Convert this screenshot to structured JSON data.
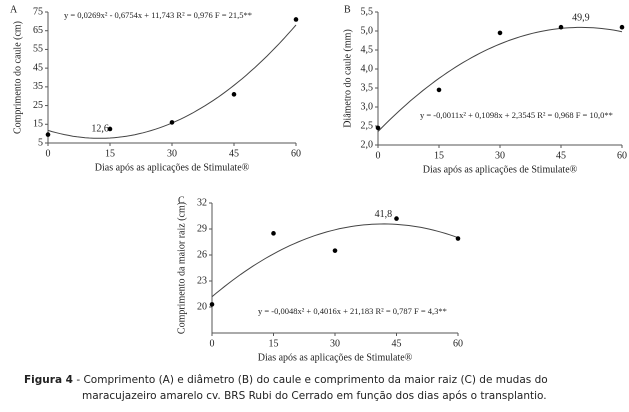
{
  "chart_data": [
    {
      "type": "scatter",
      "panel": "A",
      "equation": "y = 0,0269x² - 0,6754x + 11,743  R² = 0,976  F = 21,5**",
      "fit": [
        0.0269,
        -0.6754,
        11.743
      ],
      "annotation": {
        "value": 12.6,
        "label": "12,6"
      },
      "xlabel": "Dias após as aplicações de Stimulate®",
      "ylabel": "Comprimento do caule (cm)",
      "x": [
        0,
        15,
        30,
        45,
        60
      ],
      "values": [
        9.5,
        12.5,
        16,
        31,
        71
      ],
      "color": "#000000",
      "xlim": [
        0,
        60
      ],
      "xticks": [
        0,
        15,
        30,
        45,
        60
      ],
      "ylim": [
        5,
        75
      ],
      "yticks": [
        5,
        15,
        25,
        35,
        45,
        55,
        65,
        75
      ]
    },
    {
      "type": "scatter",
      "panel": "B",
      "equation": "y = -0,0011x² + 0,1098x + 2,3545  R² = 0,968  F = 10,0**",
      "fit": [
        -0.0011,
        0.1098,
        2.3545
      ],
      "annotation": {
        "value": 49.9,
        "label": "49,9"
      },
      "xlabel": "Dias após as aplicações de Stimulate®",
      "ylabel": "Diâmetro do caule (mm)",
      "x": [
        0,
        15,
        30,
        45,
        60
      ],
      "values": [
        2.45,
        3.45,
        4.95,
        5.1,
        5.1
      ],
      "color": "#000000",
      "xlim": [
        0,
        60
      ],
      "xticks": [
        0,
        15,
        30,
        45,
        60
      ],
      "ylim": [
        2,
        5.5
      ],
      "yticks": [
        {
          "value": 2,
          "label": "2,0"
        },
        {
          "value": 2.5,
          "label": "2,5"
        },
        {
          "value": 3,
          "label": "3,0"
        },
        {
          "value": 3.5,
          "label": "3,5"
        },
        {
          "value": 4,
          "label": "4,0"
        },
        {
          "value": 4.5,
          "label": "4,5"
        },
        {
          "value": 5,
          "label": "5,0"
        },
        {
          "value": 5.5,
          "label": "5,5"
        }
      ]
    },
    {
      "type": "scatter",
      "panel": "C",
      "equation": "y = -0,0048x² + 0,4016x + 21,183  R² = 0,787  F = 4,3**",
      "fit": [
        -0.0048,
        0.4016,
        21.183
      ],
      "annotation": {
        "value": 41.8,
        "label": "41,8"
      },
      "xlabel": "Dias após as aplicações de Stimulate®",
      "ylabel": "Comprimento da maior raiz (cm)",
      "x": [
        0,
        15,
        30,
        45,
        60
      ],
      "values": [
        20.3,
        28.5,
        26.5,
        30.2,
        27.9
      ],
      "color": "#000000",
      "xlim": [
        0,
        60
      ],
      "xticks": [
        0,
        15,
        30,
        45,
        60
      ],
      "ylim": [
        17,
        32
      ],
      "yticks": [
        20,
        23,
        26,
        29,
        32
      ]
    }
  ],
  "caption": {
    "label": "Figura 4",
    "text": "- Comprimento (A) e diâmetro (B) do caule e comprimento da maior raiz (C) de mudas do maracujazeiro amarelo cv. BRS Rubi do Cerrado em função dos dias após o transplantio."
  }
}
